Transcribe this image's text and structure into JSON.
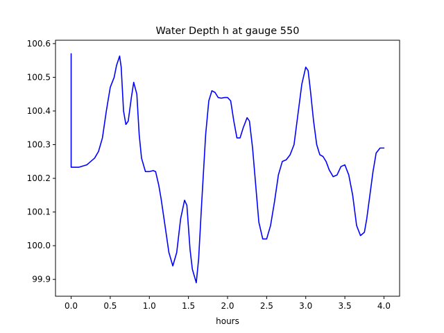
{
  "chart_data": {
    "type": "line",
    "title": "Water Depth h at gauge 550",
    "xlabel": "hours",
    "ylabel": "",
    "xlim": [
      -0.2,
      4.2
    ],
    "ylim": [
      99.85,
      100.61
    ],
    "xticks": [
      0.0,
      0.5,
      1.0,
      1.5,
      2.0,
      2.5,
      3.0,
      3.5,
      4.0
    ],
    "xtick_labels": [
      "0.0",
      "0.5",
      "1.0",
      "1.5",
      "2.0",
      "2.5",
      "3.0",
      "3.5",
      "4.0"
    ],
    "yticks": [
      99.9,
      100.0,
      100.1,
      100.2,
      100.3,
      100.4,
      100.5,
      100.6
    ],
    "ytick_labels": [
      "99.9",
      "100.0",
      "100.1",
      "100.2",
      "100.3",
      "100.4",
      "100.5",
      "100.6"
    ],
    "grid": false,
    "series": [
      {
        "color": "#0000ff",
        "x": [
          0.0,
          0.0,
          0.02,
          0.1,
          0.2,
          0.3,
          0.35,
          0.4,
          0.45,
          0.5,
          0.55,
          0.58,
          0.62,
          0.64,
          0.67,
          0.7,
          0.73,
          0.77,
          0.8,
          0.84,
          0.87,
          0.9,
          0.95,
          1.0,
          1.05,
          1.08,
          1.12,
          1.15,
          1.2,
          1.25,
          1.3,
          1.35,
          1.4,
          1.45,
          1.48,
          1.52,
          1.55,
          1.6,
          1.63,
          1.67,
          1.72,
          1.76,
          1.8,
          1.84,
          1.88,
          1.92,
          1.96,
          2.0,
          2.04,
          2.08,
          2.12,
          2.16,
          2.2,
          2.25,
          2.28,
          2.32,
          2.36,
          2.4,
          2.45,
          2.5,
          2.55,
          2.6,
          2.65,
          2.7,
          2.75,
          2.8,
          2.85,
          2.9,
          2.95,
          3.0,
          3.03,
          3.06,
          3.1,
          3.14,
          3.18,
          3.22,
          3.26,
          3.3,
          3.35,
          3.4,
          3.45,
          3.5,
          3.55,
          3.6,
          3.65,
          3.7,
          3.75,
          3.78,
          3.82,
          3.86,
          3.9,
          3.95,
          4.0
        ],
        "values": [
          100.57,
          100.233,
          100.233,
          100.233,
          100.24,
          100.26,
          100.28,
          100.32,
          100.4,
          100.47,
          100.5,
          100.535,
          100.563,
          100.53,
          100.4,
          100.36,
          100.37,
          100.44,
          100.485,
          100.45,
          100.33,
          100.26,
          100.22,
          100.22,
          100.223,
          100.22,
          100.18,
          100.14,
          100.06,
          99.98,
          99.94,
          99.98,
          100.08,
          100.135,
          100.12,
          99.99,
          99.93,
          99.89,
          99.96,
          100.13,
          100.33,
          100.43,
          100.46,
          100.455,
          100.44,
          100.438,
          100.44,
          100.44,
          100.43,
          100.37,
          100.32,
          100.32,
          100.35,
          100.38,
          100.37,
          100.29,
          100.18,
          100.07,
          100.02,
          100.02,
          100.06,
          100.13,
          100.21,
          100.25,
          100.255,
          100.27,
          100.3,
          100.39,
          100.48,
          100.53,
          100.52,
          100.46,
          100.37,
          100.3,
          100.27,
          100.265,
          100.25,
          100.225,
          100.205,
          100.21,
          100.235,
          100.24,
          100.21,
          100.15,
          100.06,
          100.03,
          100.04,
          100.08,
          100.15,
          100.22,
          100.275,
          100.29,
          100.29
        ]
      }
    ]
  }
}
